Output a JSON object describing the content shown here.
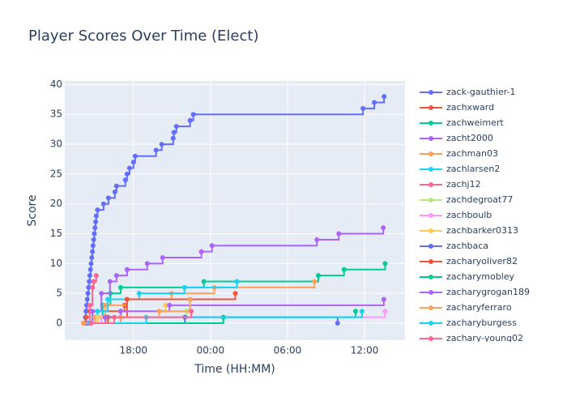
{
  "chart_data": {
    "type": "line",
    "line_shape": "hv",
    "markers": true,
    "title": "Player Scores Over Time (Elect)",
    "xlabel": "Time (HH:MM)",
    "ylabel": "Score",
    "xlim": [
      12.65,
      39.15
    ],
    "ylim": [
      -2.85,
      40.6
    ],
    "xticks": [
      {
        "value": 18,
        "label": "18:00"
      },
      {
        "value": 24,
        "label": "00:00"
      },
      {
        "value": 30,
        "label": "06:00"
      },
      {
        "value": 36,
        "label": "12:00"
      }
    ],
    "yticks": [
      0,
      5,
      10,
      15,
      20,
      25,
      30,
      35,
      40
    ],
    "grid": true,
    "series": [
      {
        "name": "zack-gauthier-1",
        "color": "#636efa",
        "x": [
          14.2,
          14.25,
          14.3,
          14.35,
          14.4,
          14.45,
          14.5,
          14.55,
          14.6,
          14.65,
          14.7,
          14.75,
          14.8,
          14.85,
          14.9,
          14.95,
          15.0,
          15.05,
          15.1,
          15.2,
          15.67,
          16.05,
          16.55,
          16.68,
          17.37,
          17.5,
          17.69,
          18.0,
          18.13,
          19.76,
          20.2,
          21.09,
          21.15,
          21.34,
          22.41,
          22.66,
          35.88,
          36.76,
          37.52
        ],
        "values": [
          0,
          1,
          2,
          3,
          4,
          5,
          6,
          7,
          8,
          9,
          10,
          11,
          12,
          13,
          14,
          15,
          16,
          17,
          18,
          19,
          20,
          21,
          22,
          23,
          24,
          25,
          26,
          27,
          28,
          29,
          30,
          31,
          32,
          33,
          34,
          35,
          36,
          37,
          38
        ]
      },
      {
        "name": "zachxward",
        "color": "#EF553B",
        "x": [
          14.1,
          14.3,
          14.6,
          17.3
        ],
        "values": [
          0,
          1,
          2,
          3
        ]
      },
      {
        "name": "zachweimert",
        "color": "#00cc96",
        "x": [
          14.4,
          15.0,
          15.6,
          16.2,
          17.0,
          23.48,
          32.4,
          34.4,
          37.6
        ],
        "values": [
          0,
          1,
          3,
          5,
          6,
          7,
          8,
          9,
          10
        ]
      },
      {
        "name": "zacht2000",
        "color": "#ab63fa",
        "x": [
          14.3,
          14.8,
          15.5,
          16.17,
          16.68,
          17.5,
          19.07,
          20.27,
          23.29,
          24.11,
          32.29,
          33.99,
          37.46
        ],
        "values": [
          0,
          2,
          5,
          7,
          8,
          9,
          10,
          11,
          12,
          13,
          14,
          15,
          16
        ]
      },
      {
        "name": "zachman03",
        "color": "#FFA15A",
        "x": [
          14.3,
          15.0,
          15.8,
          17.5,
          20.96,
          24.3,
          32.1
        ],
        "values": [
          0,
          1,
          3,
          4,
          5,
          6,
          7
        ]
      },
      {
        "name": "zachlarsen2",
        "color": "#19d3f3",
        "x": [
          14.5,
          15.2,
          16.0,
          18.44,
          21.97,
          26.06
        ],
        "values": [
          0,
          2,
          4,
          5,
          6,
          7
        ]
      },
      {
        "name": "zachj12",
        "color": "#FF6692",
        "x": [
          14.3,
          14.6,
          14.8,
          14.9,
          15.1
        ],
        "values": [
          0,
          3,
          6,
          7,
          8
        ]
      },
      {
        "name": "zachdegroat77",
        "color": "#B6E880",
        "x": [
          14.2,
          16.1,
          22.15
        ],
        "values": [
          0,
          1,
          2
        ]
      },
      {
        "name": "zachboulb",
        "color": "#FF97FF",
        "x": [
          14.2,
          15.5,
          37.6
        ],
        "values": [
          0,
          1,
          2
        ]
      },
      {
        "name": "zachbarker0313",
        "color": "#FECB52",
        "x": [
          14.2,
          15.2,
          17.0,
          20.5
        ],
        "values": [
          0,
          1,
          2,
          3
        ]
      },
      {
        "name": "zachbaca",
        "color": "#636efa",
        "x": [
          14.5,
          22.0,
          33.9
        ],
        "values": [
          0,
          1,
          0
        ]
      },
      {
        "name": "zacharyoliver82",
        "color": "#EF553B",
        "x": [
          14.2,
          16.0,
          17.5,
          25.93
        ],
        "values": [
          0,
          1,
          4,
          5
        ]
      },
      {
        "name": "zacharymobley",
        "color": "#00cc96",
        "x": [
          14.5,
          25.0,
          35.3
        ],
        "values": [
          0,
          1,
          2
        ]
      },
      {
        "name": "zacharygrogan189",
        "color": "#ab63fa",
        "x": [
          14.4,
          15.8,
          17.0,
          20.8,
          37.5
        ],
        "values": [
          0,
          1,
          2,
          3,
          4
        ]
      },
      {
        "name": "zacharyferraro",
        "color": "#FFA15A",
        "x": [
          14.1,
          17.0,
          20.0,
          22.4
        ],
        "values": [
          0,
          1,
          2,
          4
        ]
      },
      {
        "name": "zacharyburgess",
        "color": "#19d3f3",
        "x": [
          14.6,
          19.0,
          35.8
        ],
        "values": [
          0,
          1,
          2
        ]
      },
      {
        "name": "zachary-young02",
        "color": "#FF6692",
        "x": [
          14.7,
          16.5,
          22.5
        ],
        "values": [
          0,
          1,
          2
        ]
      }
    ]
  }
}
